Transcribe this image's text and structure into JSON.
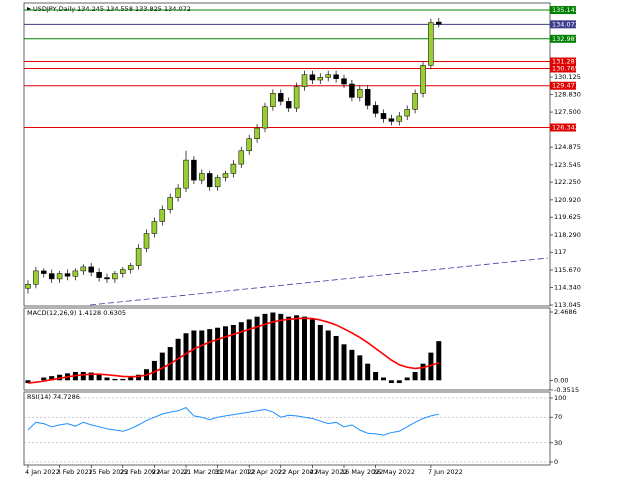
{
  "chart_data": [
    {
      "type": "candlestick",
      "title": "USDJPY,Daily  134.245 134.558 133.825 134.072",
      "categories": [
        "4 Jan 2022",
        null,
        null,
        null,
        "3 Feb 2022",
        null,
        null,
        null,
        "15 Feb 2022",
        null,
        null,
        null,
        "25 Feb 2022",
        null,
        null,
        null,
        "9 Mar 2022",
        null,
        null,
        null,
        "21 Mar 2022",
        null,
        null,
        null,
        "31 Mar 2022",
        null,
        null,
        null,
        "12 Apr 2022",
        null,
        null,
        null,
        "22 Apr 2022",
        null,
        null,
        null,
        "4 May 2022",
        null,
        null,
        null,
        "16 May 2022",
        null,
        null,
        null,
        "26 May 2022",
        null,
        null,
        null,
        null,
        null,
        null,
        "7 Jun 2022",
        null
      ],
      "open": [
        114.3,
        114.6,
        115.6,
        115.4,
        115.0,
        115.4,
        115.2,
        115.6,
        115.9,
        115.5,
        115.1,
        115.0,
        115.4,
        115.7,
        116.0,
        117.3,
        118.4,
        119.3,
        120.2,
        121.1,
        121.8,
        123.9,
        122.4,
        122.9,
        121.9,
        122.6,
        122.9,
        123.6,
        124.6,
        125.5,
        126.3,
        127.9,
        128.9,
        128.3,
        127.8,
        129.4,
        130.3,
        129.9,
        130.1,
        130.3,
        130.0,
        129.6,
        128.6,
        129.2,
        128.0,
        127.4,
        127.0,
        126.8,
        127.2,
        127.7,
        128.9,
        131.0,
        134.245
      ],
      "high": [
        114.9,
        115.9,
        115.8,
        115.7,
        115.6,
        115.7,
        115.8,
        116.1,
        116.2,
        115.8,
        115.4,
        115.6,
        115.9,
        116.2,
        117.6,
        118.7,
        119.6,
        120.5,
        121.4,
        122.1,
        124.6,
        124.2,
        123.2,
        123.1,
        122.8,
        123.1,
        123.9,
        124.9,
        125.8,
        126.6,
        128.2,
        129.2,
        129.2,
        128.6,
        129.7,
        130.6,
        130.6,
        130.4,
        130.6,
        130.6,
        130.3,
        129.9,
        129.5,
        129.5,
        128.3,
        127.7,
        127.3,
        127.5,
        128.0,
        129.2,
        131.3,
        134.5,
        134.558
      ],
      "low": [
        113.9,
        114.3,
        115.1,
        114.7,
        114.7,
        114.9,
        114.9,
        115.3,
        115.2,
        114.8,
        114.7,
        114.7,
        115.1,
        115.4,
        115.7,
        117.0,
        118.1,
        119.0,
        119.9,
        120.8,
        121.5,
        122.1,
        122.1,
        121.6,
        121.6,
        122.3,
        122.6,
        123.3,
        124.3,
        125.2,
        126.0,
        127.6,
        128.0,
        127.5,
        127.5,
        129.1,
        129.6,
        129.6,
        129.8,
        129.7,
        129.3,
        128.3,
        128.3,
        127.7,
        127.1,
        126.7,
        126.5,
        126.5,
        126.9,
        127.4,
        128.6,
        130.7,
        133.825
      ],
      "close": [
        114.6,
        115.6,
        115.4,
        115.0,
        115.4,
        115.2,
        115.6,
        115.9,
        115.5,
        115.1,
        115.0,
        115.4,
        115.7,
        116.0,
        117.3,
        118.4,
        119.3,
        120.2,
        121.1,
        121.8,
        123.9,
        122.4,
        122.9,
        121.9,
        122.6,
        122.9,
        123.6,
        124.6,
        125.5,
        126.3,
        127.9,
        128.9,
        128.3,
        127.8,
        129.4,
        130.3,
        129.9,
        130.1,
        130.3,
        130.0,
        129.6,
        128.6,
        129.2,
        128.0,
        127.4,
        127.0,
        126.8,
        127.2,
        127.7,
        128.9,
        131.0,
        134.2,
        134.072
      ],
      "up_color": "#9acd32",
      "down_color": "#000000",
      "ylim": [
        113.045,
        135.52
      ],
      "yticks": [
        {
          "value": 113.045,
          "label": "113.045"
        },
        {
          "value": 114.34,
          "label": "114.340"
        },
        {
          "value": 115.67,
          "label": "115.670"
        },
        117,
        {
          "value": 118.29,
          "label": "118.290"
        },
        119.625,
        {
          "value": 120.92,
          "label": "120.920"
        },
        {
          "value": 122.25,
          "label": "122.250"
        },
        123.545,
        124.875,
        {
          "value": 127.5,
          "label": "127.500"
        },
        {
          "value": 128.83,
          "label": "128.830"
        },
        130.125
      ],
      "levels": [
        {
          "value": 135.143,
          "label": "135.143",
          "color": "#008000"
        },
        {
          "value": 134.072,
          "label": "134.072",
          "color": "#3c3c8c"
        },
        {
          "value": 132.987,
          "label": "132.987",
          "color": "#008000"
        },
        {
          "value": 131.287,
          "label": "131.287",
          "color": "#e00000"
        },
        {
          "value": 130.765,
          "label": "130.765",
          "color": "#e00000"
        },
        {
          "value": 129.471,
          "label": "129.471",
          "color": "#e00000"
        },
        {
          "value": 126.342,
          "label": "126.342",
          "color": "#e00000"
        }
      ]
    },
    {
      "type": "macd",
      "title": "MACD(12,26,9) 1.4128 0.6305",
      "series": [
        {
          "color": "#000000",
          "values": [
            -0.1,
            0.0,
            0.1,
            0.15,
            0.2,
            0.25,
            0.3,
            0.3,
            0.28,
            0.2,
            0.1,
            0.05,
            0.05,
            0.1,
            0.2,
            0.4,
            0.7,
            1.0,
            1.2,
            1.5,
            1.7,
            1.8,
            1.8,
            1.85,
            1.9,
            1.95,
            2.0,
            2.1,
            2.2,
            2.3,
            2.4,
            2.45,
            2.4,
            2.3,
            2.35,
            2.3,
            2.2,
            2.0,
            1.8,
            1.6,
            1.3,
            1.1,
            0.9,
            0.6,
            0.3,
            0.1,
            -0.1,
            -0.1,
            0.1,
            0.3,
            0.6,
            1.0,
            1.4128
          ]
        },
        {
          "color": "#ff0000",
          "values": [
            -0.1,
            -0.07,
            -0.03,
            0.02,
            0.07,
            0.12,
            0.17,
            0.2,
            0.22,
            0.22,
            0.2,
            0.17,
            0.14,
            0.13,
            0.14,
            0.19,
            0.3,
            0.44,
            0.6,
            0.78,
            0.96,
            1.13,
            1.26,
            1.38,
            1.48,
            1.57,
            1.66,
            1.75,
            1.84,
            1.93,
            2.02,
            2.11,
            2.17,
            2.2,
            2.23,
            2.24,
            2.23,
            2.18,
            2.1,
            2.0,
            1.86,
            1.71,
            1.55,
            1.36,
            1.15,
            0.94,
            0.73,
            0.56,
            0.47,
            0.43,
            0.46,
            0.54,
            0.6305
          ]
        }
      ],
      "ylim": [
        -0.3515,
        2.613
      ],
      "yticks": [
        2.4686,
        {
          "value": 0,
          "label": "0.00"
        },
        -0.3515
      ]
    },
    {
      "type": "line",
      "title": "RSI(14) 74.7286",
      "color": "#1e90ff",
      "values": [
        50,
        62,
        60,
        55,
        58,
        60,
        56,
        62,
        58,
        55,
        52,
        50,
        48,
        52,
        58,
        65,
        70,
        75,
        78,
        80,
        85,
        72,
        70,
        66,
        70,
        72,
        74,
        76,
        78,
        80,
        82,
        78,
        70,
        73,
        72,
        70,
        68,
        64,
        60,
        62,
        55,
        58,
        50,
        45,
        44,
        42,
        46,
        48,
        55,
        62,
        68,
        72,
        74.7286
      ],
      "ylim": [
        0,
        100
      ],
      "yticks": [
        100,
        70,
        30,
        0
      ]
    }
  ]
}
